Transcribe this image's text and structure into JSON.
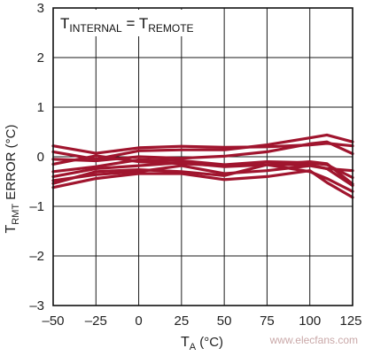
{
  "chart_data": {
    "type": "line",
    "xlabel": {
      "main": "T",
      "sub": "A",
      "unit": " (°C)"
    },
    "ylabel": {
      "main": "T",
      "sub": "RMT",
      "unit": " ERROR (°C)"
    },
    "annotation": {
      "t1": "T",
      "s1": "INTERNAL",
      "eq": " = ",
      "t2": "T",
      "s2": "REMOTE"
    },
    "xlim": [
      -50,
      125
    ],
    "ylim": [
      -3,
      3
    ],
    "xticks": [
      -50,
      -25,
      0,
      25,
      50,
      75,
      100,
      125
    ],
    "xtick_labels": [
      "–50",
      "–25",
      "0",
      "25",
      "50",
      "75",
      "100",
      "125"
    ],
    "yticks": [
      3,
      2,
      1,
      0,
      -1,
      -2,
      -3
    ],
    "ytick_labels": [
      "3",
      "2",
      "1",
      "0",
      "–1",
      "–2",
      "–3"
    ],
    "grid": true,
    "line_color": "#a0152e",
    "x": [
      -50,
      -25,
      0,
      25,
      50,
      75,
      100,
      110,
      125
    ],
    "series": [
      {
        "values": [
          0.22,
          0.07,
          0.18,
          0.21,
          0.19,
          0.2,
          0.24,
          0.27,
          0.22
        ]
      },
      {
        "values": [
          0.1,
          -0.05,
          0.12,
          0.14,
          0.14,
          0.24,
          0.38,
          0.44,
          0.3
        ]
      },
      {
        "values": [
          -0.05,
          -0.08,
          0.0,
          -0.03,
          0.01,
          0.1,
          0.26,
          0.3,
          0.06
        ]
      },
      {
        "values": [
          -0.15,
          0.02,
          -0.1,
          -0.14,
          -0.18,
          -0.16,
          -0.16,
          -0.24,
          -0.28
        ]
      },
      {
        "values": [
          -0.3,
          -0.2,
          -0.06,
          -0.08,
          -0.16,
          -0.1,
          -0.12,
          -0.16,
          -0.42
        ]
      },
      {
        "values": [
          -0.4,
          -0.24,
          -0.18,
          -0.12,
          -0.2,
          -0.16,
          -0.1,
          -0.14,
          -0.55
        ]
      },
      {
        "values": [
          -0.48,
          -0.36,
          -0.3,
          -0.18,
          -0.34,
          -0.28,
          -0.18,
          -0.24,
          -0.58
        ]
      },
      {
        "values": [
          -0.54,
          -0.3,
          -0.26,
          -0.3,
          -0.38,
          -0.16,
          -0.3,
          -0.44,
          -0.7
        ]
      },
      {
        "values": [
          -0.62,
          -0.44,
          -0.34,
          -0.34,
          -0.46,
          -0.4,
          -0.28,
          -0.52,
          -0.82
        ]
      }
    ]
  },
  "watermark": {
    "text": "www.elecfans.com"
  },
  "watermark_color": "#c9a8a8"
}
